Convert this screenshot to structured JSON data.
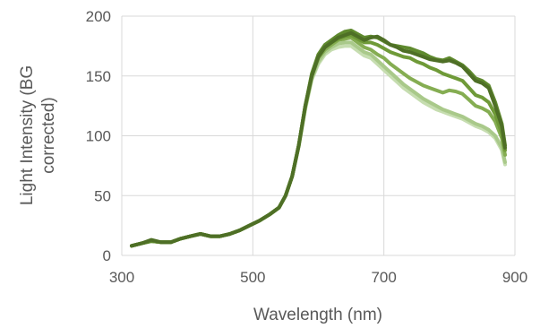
{
  "chart_data": {
    "type": "line",
    "title": "",
    "xlabel": "Wavelength (nm)",
    "ylabel_lines": [
      "Light Intensity (BG",
      "corrected)"
    ],
    "xlim": [
      300,
      900
    ],
    "ylim": [
      0,
      200
    ],
    "x_ticks": [
      300,
      500,
      700,
      900
    ],
    "y_ticks": [
      0,
      50,
      100,
      150,
      200
    ],
    "x_tick_labels": [
      "300",
      "500",
      "700",
      "900"
    ],
    "y_tick_labels": [
      "0",
      "50",
      "100",
      "150",
      "200"
    ],
    "grid": "vertical and horizontal major gridlines",
    "legend": "none",
    "x": [
      315,
      330,
      345,
      360,
      375,
      390,
      405,
      420,
      435,
      450,
      465,
      480,
      495,
      510,
      525,
      540,
      550,
      560,
      570,
      580,
      590,
      600,
      610,
      620,
      630,
      640,
      650,
      660,
      670,
      680,
      690,
      700,
      710,
      720,
      730,
      740,
      750,
      760,
      770,
      780,
      790,
      800,
      810,
      820,
      830,
      840,
      850,
      860,
      870,
      880,
      885
    ],
    "series": [
      {
        "color": "#4e6f26",
        "values": [
          8,
          10,
          13,
          11,
          11,
          14,
          16,
          18,
          16,
          16,
          18,
          21,
          25,
          29,
          34,
          40,
          50,
          66,
          92,
          125,
          150,
          166,
          174,
          178,
          182,
          184,
          186,
          183,
          180,
          182,
          183,
          180,
          176,
          174,
          171,
          170,
          168,
          166,
          164,
          163,
          162,
          163,
          161,
          158,
          152,
          146,
          144,
          140,
          125,
          108,
          90
        ]
      },
      {
        "color": "#5f8a2e",
        "values": [
          8,
          10,
          12,
          11,
          11,
          14,
          16,
          18,
          16,
          16,
          18,
          21,
          25,
          29,
          34,
          40,
          50,
          66,
          92,
          125,
          152,
          168,
          176,
          180,
          184,
          187,
          188,
          185,
          182,
          183,
          182,
          179,
          176,
          175,
          174,
          173,
          171,
          169,
          166,
          164,
          163,
          165,
          162,
          159,
          154,
          148,
          146,
          142,
          128,
          110,
          92
        ]
      },
      {
        "color": "#6f9a38",
        "values": [
          8,
          10,
          12,
          11,
          11,
          14,
          16,
          18,
          16,
          16,
          18,
          21,
          25,
          29,
          34,
          40,
          50,
          66,
          92,
          125,
          151,
          166,
          174,
          178,
          181,
          183,
          184,
          181,
          178,
          178,
          176,
          173,
          170,
          168,
          166,
          165,
          162,
          160,
          157,
          155,
          152,
          150,
          148,
          146,
          140,
          134,
          132,
          128,
          118,
          102,
          88
        ]
      },
      {
        "color": "#85ad52",
        "values": [
          8,
          10,
          12,
          11,
          11,
          14,
          16,
          18,
          16,
          16,
          18,
          21,
          25,
          29,
          34,
          40,
          50,
          66,
          92,
          124,
          150,
          165,
          172,
          176,
          180,
          181,
          182,
          178,
          174,
          172,
          168,
          165,
          160,
          156,
          152,
          148,
          145,
          142,
          140,
          138,
          136,
          138,
          137,
          135,
          130,
          125,
          123,
          120,
          112,
          98,
          84
        ]
      },
      {
        "color": "#a9c98a",
        "values": [
          8,
          10,
          12,
          11,
          11,
          14,
          16,
          18,
          16,
          16,
          18,
          21,
          25,
          29,
          34,
          40,
          50,
          66,
          91,
          123,
          148,
          162,
          170,
          174,
          177,
          178,
          178,
          174,
          170,
          168,
          163,
          158,
          153,
          148,
          143,
          139,
          135,
          131,
          128,
          125,
          122,
          120,
          118,
          116,
          113,
          110,
          108,
          105,
          100,
          90,
          78
        ]
      },
      {
        "color": "#c6ddb0",
        "values": [
          8,
          10,
          12,
          11,
          11,
          14,
          16,
          18,
          16,
          16,
          18,
          21,
          25,
          29,
          34,
          40,
          50,
          66,
          91,
          122,
          147,
          160,
          168,
          172,
          174,
          175,
          175,
          171,
          167,
          165,
          160,
          155,
          150,
          145,
          140,
          136,
          132,
          128,
          125,
          122,
          120,
          118,
          116,
          114,
          111,
          108,
          106,
          103,
          98,
          88,
          76
        ]
      }
    ]
  }
}
